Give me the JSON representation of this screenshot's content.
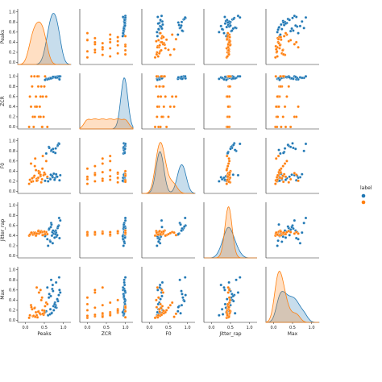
{
  "chart_data": {
    "type": "scatter",
    "kind": "pairplot",
    "variables": [
      "Peaks",
      "ZCR",
      "F0",
      "Jitter_rap",
      "Max"
    ],
    "tick_values": [
      0.0,
      0.2,
      0.4,
      0.6,
      0.8,
      1.0
    ],
    "x_ticks": [
      0.0,
      0.5,
      1.0
    ],
    "x_tick_labels": [
      "0.0",
      "0.5",
      "1.0"
    ],
    "y_tick_labels": [
      "0.0",
      "0.2",
      "0.4",
      "0.6",
      "0.8",
      "1.0"
    ],
    "xlim": [
      -0.2,
      1.2
    ],
    "ylim": [
      -0.04,
      1.06
    ],
    "legend": {
      "title": "label",
      "placement": "center-right",
      "entries": [
        "",
        ""
      ]
    },
    "colors": {
      "class_a": "#1f77b4",
      "class_b": "#ff7f0e"
    },
    "series": [
      {
        "key": "class_a",
        "values": {
          "Peaks": [
            0.6,
            0.65,
            0.7,
            0.75,
            0.8,
            0.85,
            0.88,
            0.9,
            0.72,
            0.68,
            0.55,
            0.82,
            0.78,
            0.62,
            0.92,
            0.66,
            0.74,
            0.86,
            0.58,
            0.81,
            0.69,
            0.77,
            0.84,
            0.63,
            0.71,
            0.89,
            0.52,
            0.79,
            0.67,
            0.73
          ],
          "ZCR": [
            0.95,
            0.96,
            0.97,
            0.98,
            0.99,
            1.0,
            0.96,
            0.94,
            0.98,
            0.97,
            0.95,
            0.99,
            0.98,
            0.96,
            1.0,
            0.97,
            0.98,
            0.99,
            0.94,
            0.97,
            0.96,
            0.99,
            0.98,
            0.95,
            0.97,
            1.0,
            0.93,
            0.98,
            0.96,
            0.99
          ],
          "F0": [
            0.2,
            0.25,
            0.3,
            0.35,
            0.85,
            0.9,
            0.95,
            0.22,
            0.28,
            0.8,
            0.75,
            0.3,
            0.26,
            0.88,
            0.32,
            0.24,
            0.78,
            0.92,
            0.27,
            0.34,
            0.82,
            0.23,
            0.29,
            0.86,
            0.31,
            0.94,
            0.21,
            0.76,
            0.33,
            0.84
          ],
          "Jitter_rap": [
            0.2,
            0.3,
            0.4,
            0.45,
            0.5,
            0.55,
            0.6,
            0.35,
            0.25,
            0.65,
            0.42,
            0.38,
            0.48,
            0.52,
            0.7,
            0.28,
            0.44,
            0.58,
            0.33,
            0.46,
            0.62,
            0.36,
            0.41,
            0.54,
            0.47,
            0.75,
            0.39,
            0.43,
            0.57,
            0.5
          ],
          "Max": [
            0.1,
            0.12,
            0.15,
            0.2,
            0.3,
            0.4,
            0.5,
            0.6,
            0.7,
            0.8,
            0.18,
            0.25,
            0.35,
            0.45,
            0.55,
            0.22,
            0.28,
            0.38,
            0.65,
            0.75,
            0.14,
            0.32,
            0.42,
            0.52,
            0.62,
            0.85,
            0.16,
            0.26,
            0.48,
            0.58
          ]
        }
      },
      {
        "key": "class_b",
        "values": {
          "Peaks": [
            0.1,
            0.2,
            0.3,
            0.4,
            0.5,
            0.35,
            0.45,
            0.25,
            0.15,
            0.55,
            0.42,
            0.32,
            0.22,
            0.48,
            0.38,
            0.28,
            0.18,
            0.52,
            0.44,
            0.36,
            0.26,
            0.46,
            0.34,
            0.24,
            0.58,
            0.4,
            0.3,
            0.12,
            0.5,
            0.16
          ],
          "ZCR": [
            0.0,
            0.2,
            0.4,
            0.6,
            0.8,
            1.0,
            0.0,
            0.2,
            0.4,
            0.6,
            0.8,
            1.0,
            0.0,
            0.2,
            0.4,
            0.6,
            0.8,
            1.0,
            0.0,
            0.2,
            0.4,
            0.6,
            0.8,
            1.0,
            0.0,
            0.2,
            0.4,
            0.6,
            0.8,
            1.0
          ],
          "F0": [
            0.15,
            0.2,
            0.25,
            0.3,
            0.35,
            0.4,
            0.45,
            0.5,
            0.55,
            0.6,
            0.18,
            0.22,
            0.28,
            0.32,
            0.38,
            0.42,
            0.26,
            0.34,
            0.24,
            0.36,
            0.65,
            0.7,
            0.27,
            0.31,
            0.29,
            0.33,
            0.21,
            0.23,
            0.37,
            0.19
          ],
          "Jitter_rap": [
            0.4,
            0.42,
            0.44,
            0.46,
            0.48,
            0.5,
            0.41,
            0.43,
            0.45,
            0.47,
            0.49,
            0.44,
            0.46,
            0.42,
            0.48,
            0.4,
            0.45,
            0.43,
            0.47,
            0.44,
            0.46,
            0.41,
            0.49,
            0.45,
            0.43,
            0.47,
            0.44,
            0.42,
            0.48,
            0.46
          ],
          "Max": [
            0.05,
            0.08,
            0.1,
            0.12,
            0.15,
            0.18,
            0.2,
            0.25,
            0.3,
            0.35,
            0.4,
            0.06,
            0.09,
            0.11,
            0.14,
            0.16,
            0.22,
            0.28,
            0.45,
            0.55,
            0.07,
            0.13,
            0.17,
            0.24,
            0.32,
            0.6,
            0.65,
            0.1,
            0.19,
            0.26
          ]
        }
      }
    ]
  }
}
